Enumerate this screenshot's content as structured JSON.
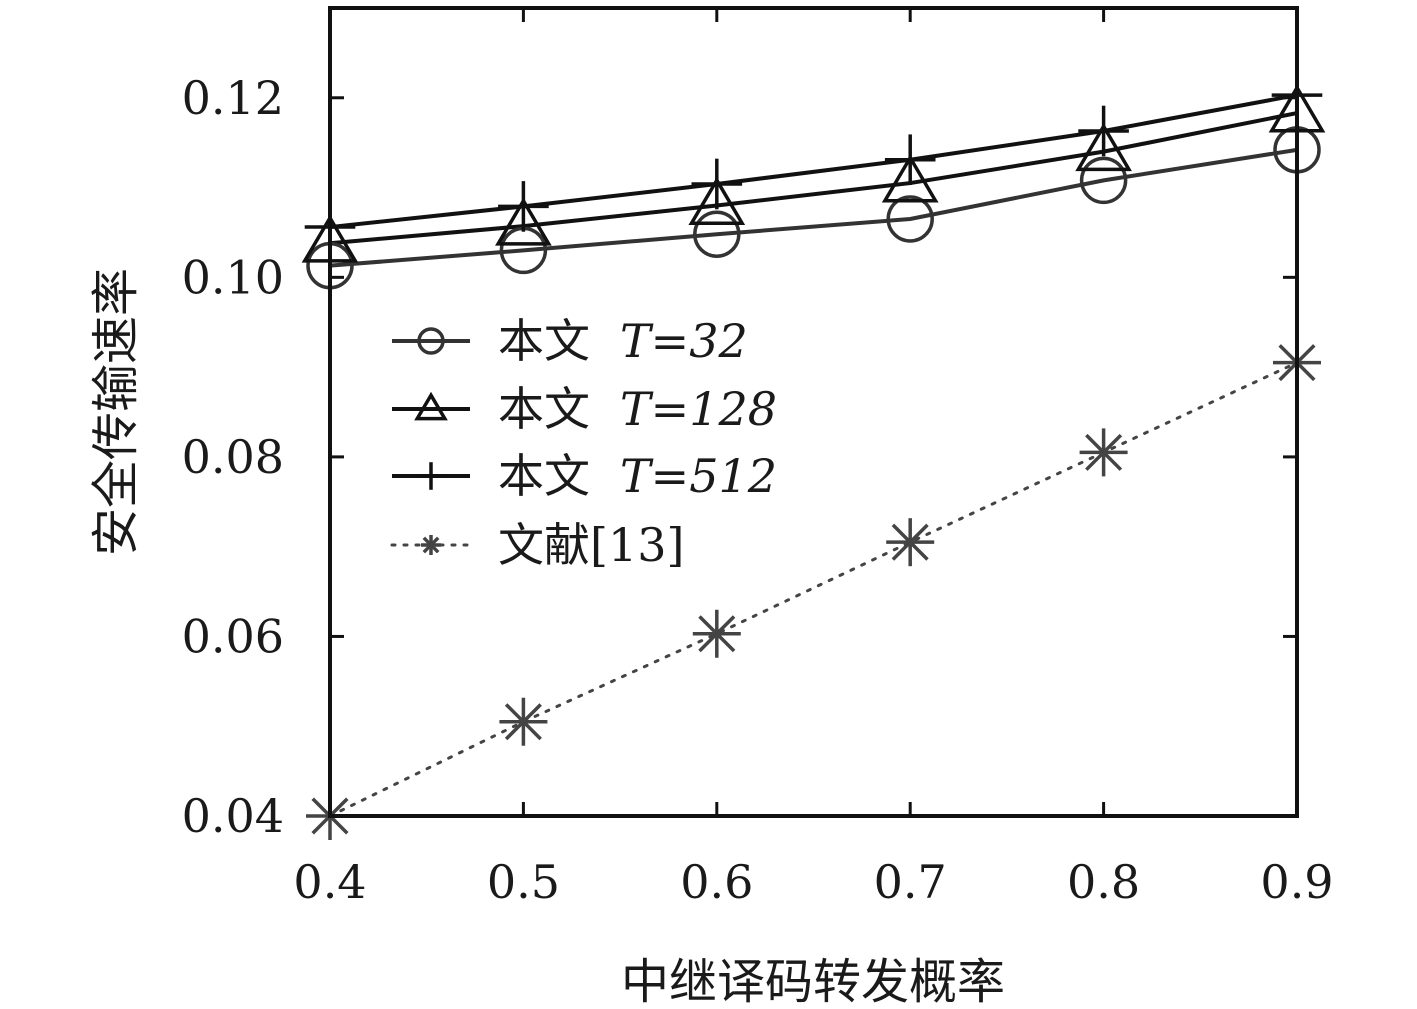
{
  "chart_data": {
    "type": "line",
    "title": "",
    "xlabel": "中继译码转发概率",
    "ylabel": "安全传输速率",
    "x": [
      0.4,
      0.5,
      0.6,
      0.7,
      0.8,
      0.9
    ],
    "xticks": [
      "0.4",
      "0.5",
      "0.6",
      "0.7",
      "0.8",
      "0.9"
    ],
    "xlim": [
      0.4,
      0.9
    ],
    "ylim": [
      0.04,
      0.13
    ],
    "yticks": [
      0.04,
      0.06,
      0.08,
      0.1,
      0.12
    ],
    "ytick_labels": [
      "0.04",
      "0.06",
      "0.08",
      "0.10",
      "0.12"
    ],
    "grid": false,
    "legend_position": "upper-left",
    "series": [
      {
        "name": "本文",
        "param": "T=32",
        "marker": "circle",
        "line": "solid",
        "color": "#333333",
        "values": [
          0.1013,
          0.103,
          0.1048,
          0.1065,
          0.1108,
          0.1142
        ]
      },
      {
        "name": "本文",
        "param": "T=128",
        "marker": "triangle",
        "line": "solid",
        "color": "#111111",
        "values": [
          0.1038,
          0.1057,
          0.108,
          0.1105,
          0.114,
          0.1183
        ]
      },
      {
        "name": "本文",
        "param": "T=512",
        "marker": "plus",
        "line": "solid",
        "color": "#111111",
        "values": [
          0.1056,
          0.1079,
          0.1104,
          0.1131,
          0.1163,
          0.1203
        ]
      },
      {
        "name": "文献[13]",
        "param": "",
        "marker": "star",
        "line": "dotted",
        "color": "#444444",
        "values": [
          0.04,
          0.0505,
          0.0603,
          0.0705,
          0.0805,
          0.0905
        ]
      }
    ]
  }
}
